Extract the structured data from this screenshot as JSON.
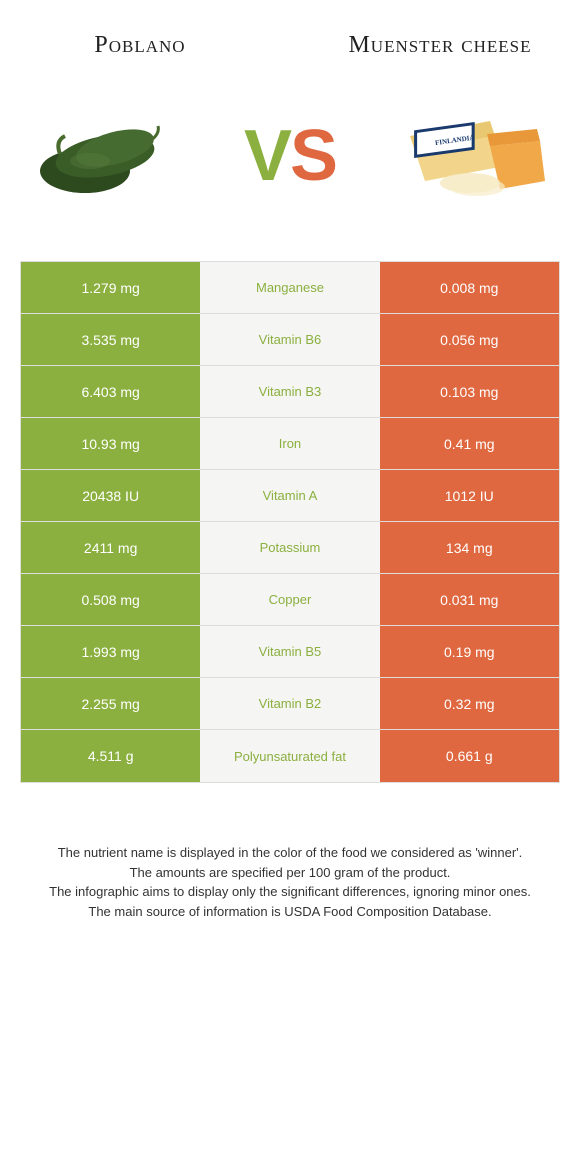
{
  "header": {
    "left_title": "Poblano",
    "right_title": "Muenster cheese",
    "vs_v": "V",
    "vs_s": "S"
  },
  "colors": {
    "left": "#8bb03f",
    "right": "#e06840",
    "mid_bg": "#f5f5f3"
  },
  "rows": [
    {
      "left": "1.279 mg",
      "mid": "Manganese",
      "right": "0.008 mg",
      "winner": "left"
    },
    {
      "left": "3.535 mg",
      "mid": "Vitamin B6",
      "right": "0.056 mg",
      "winner": "left"
    },
    {
      "left": "6.403 mg",
      "mid": "Vitamin B3",
      "right": "0.103 mg",
      "winner": "left"
    },
    {
      "left": "10.93 mg",
      "mid": "Iron",
      "right": "0.41 mg",
      "winner": "left"
    },
    {
      "left": "20438 IU",
      "mid": "Vitamin A",
      "right": "1012 IU",
      "winner": "left"
    },
    {
      "left": "2411 mg",
      "mid": "Potassium",
      "right": "134 mg",
      "winner": "left"
    },
    {
      "left": "0.508 mg",
      "mid": "Copper",
      "right": "0.031 mg",
      "winner": "left"
    },
    {
      "left": "1.993 mg",
      "mid": "Vitamin B5",
      "right": "0.19 mg",
      "winner": "left"
    },
    {
      "left": "2.255 mg",
      "mid": "Vitamin B2",
      "right": "0.32 mg",
      "winner": "left"
    },
    {
      "left": "4.511 g",
      "mid": "Polyunsaturated fat",
      "right": "0.661 g",
      "winner": "left"
    }
  ],
  "footer": {
    "line1": "The nutrient name is displayed in the color of the food we considered as 'winner'.",
    "line2": "The amounts are specified per 100 gram of the product.",
    "line3": "The infographic aims to display only the significant differences, ignoring minor ones.",
    "line4": "The main source of information is USDA Food Composition Database."
  }
}
